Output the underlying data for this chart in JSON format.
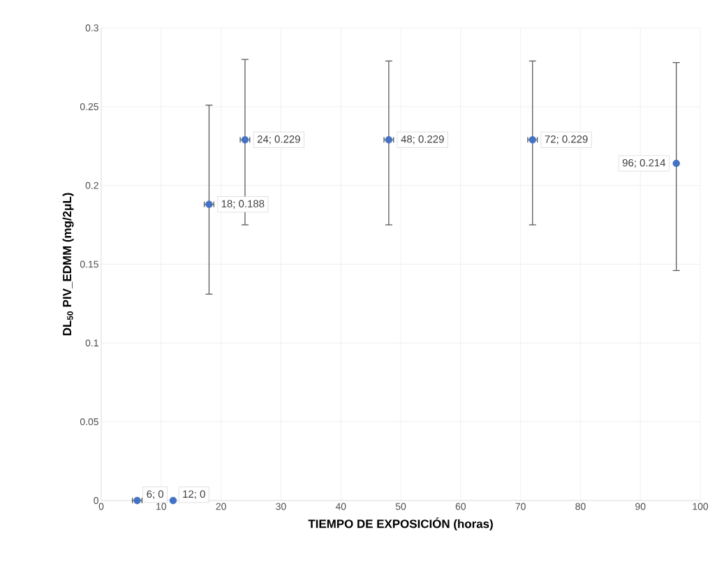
{
  "chart_data": {
    "type": "scatter",
    "xlabel": "TIEMPO DE EXPOSICIÓN (horas)",
    "ylabel": "DL$_{50}$ PIV_EDMM (mg/2μL)",
    "x": [
      6,
      12,
      18,
      24,
      48,
      72,
      96
    ],
    "values": [
      0,
      0,
      0.188,
      0.229,
      0.229,
      0.229,
      0.214
    ],
    "errors": [
      null,
      null,
      [
        0.131,
        0.251
      ],
      [
        0.175,
        0.28
      ],
      [
        0.175,
        0.279
      ],
      [
        0.175,
        0.279
      ],
      [
        0.146,
        0.278
      ]
    ],
    "xerrors": [
      0.8,
      null,
      0.8,
      0.8,
      0.8,
      0.8,
      null
    ],
    "value_labels": [
      "6; 0",
      "12; 0",
      "18; 0.188",
      "24; 0.229",
      "48; 0.229",
      "72; 0.229",
      "96; 0.214"
    ],
    "color": "#4472c4",
    "marker": "circle",
    "xlim": [
      0,
      100
    ],
    "xticks": [
      0,
      10,
      20,
      30,
      40,
      50,
      60,
      70,
      80,
      90,
      100
    ],
    "ylim": [
      0,
      0.3
    ],
    "yticks": [
      0,
      {
        "value": 0.05,
        "label": "0.05"
      },
      {
        "value": 0.1,
        "label": "0.1"
      },
      {
        "value": 0.15,
        "label": "0.15"
      },
      {
        "value": 0.2,
        "label": "0.2"
      },
      {
        "value": 0.25,
        "label": "0.25"
      },
      {
        "value": 0.3,
        "label": "0.3"
      }
    ],
    "grid": true
  }
}
